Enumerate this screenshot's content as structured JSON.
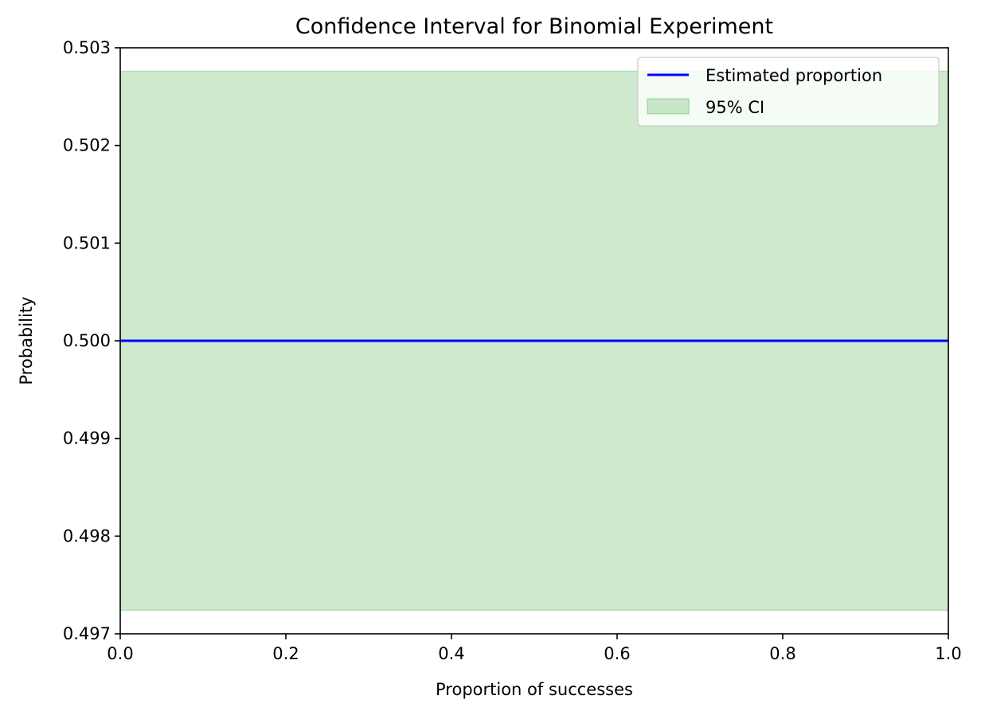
{
  "chart_data": {
    "type": "line",
    "title": "Confidence Interval for Binomial Experiment",
    "xlabel": "Proportion of successes",
    "ylabel": "Probability",
    "xlim": [
      0.0,
      1.0
    ],
    "ylim": [
      0.497,
      0.503
    ],
    "x_ticks": [
      "0.0",
      "0.2",
      "0.4",
      "0.6",
      "0.8",
      "1.0"
    ],
    "y_ticks": [
      "0.497",
      "0.498",
      "0.499",
      "0.500",
      "0.501",
      "0.502",
      "0.503"
    ],
    "grid": false,
    "legend_position": "top-right",
    "series": [
      {
        "name": "Estimated proportion",
        "kind": "line",
        "color": "#0000ff",
        "x": [
          0.0,
          1.0
        ],
        "y": [
          0.5,
          0.5
        ]
      },
      {
        "name": "95% CI",
        "kind": "band",
        "color": "#2ca02c",
        "x": [
          0.0,
          1.0
        ],
        "lower": [
          0.49724,
          0.49724
        ],
        "upper": [
          0.50276,
          0.50276
        ]
      }
    ]
  }
}
